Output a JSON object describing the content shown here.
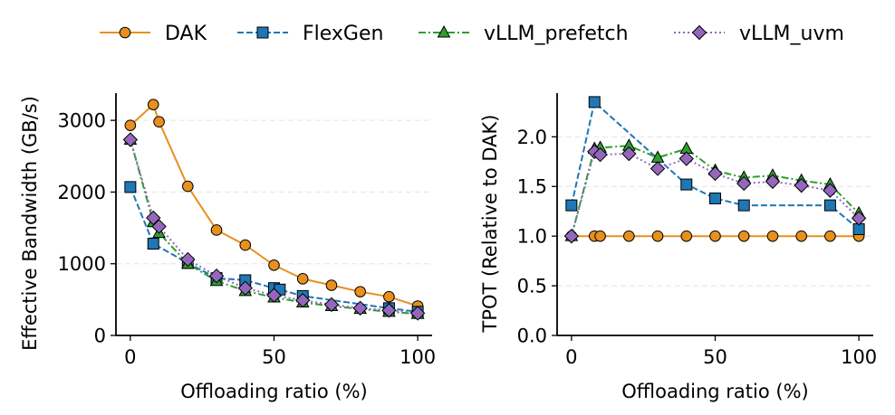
{
  "legend": {
    "position": "top-center",
    "entries": [
      {
        "label": "DAK",
        "color": "#e8901e",
        "marker": "circle",
        "dash": "solid"
      },
      {
        "label": "FlexGen",
        "color": "#1f77b4",
        "marker": "square",
        "dash": "dashed"
      },
      {
        "label": "vLLM_prefetch",
        "color": "#2ca02c",
        "marker": "triangle",
        "dash": "dashdot"
      },
      {
        "label": "vLLM_uvm",
        "color": "#9467bd",
        "marker": "diamond",
        "dash": "dotted"
      }
    ]
  },
  "chart_data": [
    {
      "type": "line",
      "title": "",
      "xlabel": "Offloading ratio (%)",
      "ylabel": "Effective Bandwidth (GB/s)",
      "xlim": [
        -5,
        105
      ],
      "ylim": [
        0,
        3380
      ],
      "xticks": [
        0,
        50,
        100
      ],
      "yticks": [
        0,
        1000,
        2000,
        3000
      ],
      "grid": "horizontal-dashed",
      "series": [
        {
          "name": "DAK",
          "x": [
            0,
            8,
            10,
            20,
            30,
            40,
            50,
            60,
            70,
            80,
            90,
            100
          ],
          "y": [
            2930,
            3220,
            2980,
            2080,
            1470,
            1260,
            980,
            790,
            700,
            610,
            540,
            410
          ]
        },
        {
          "name": "FlexGen",
          "x": [
            0,
            8,
            20,
            30,
            40,
            50,
            52,
            60,
            90,
            100
          ],
          "y": [
            2070,
            1280,
            1010,
            800,
            770,
            660,
            640,
            550,
            380,
            330
          ]
        },
        {
          "name": "vLLM_prefetch",
          "x": [
            0,
            8,
            10,
            20,
            30,
            40,
            50,
            60,
            70,
            80,
            90,
            100
          ],
          "y": [
            2730,
            1580,
            1430,
            1000,
            760,
            620,
            530,
            460,
            410,
            370,
            330,
            300
          ]
        },
        {
          "name": "vLLM_uvm",
          "x": [
            0,
            8,
            10,
            20,
            30,
            40,
            50,
            60,
            70,
            80,
            90,
            100
          ],
          "y": [
            2730,
            1640,
            1520,
            1060,
            830,
            660,
            560,
            490,
            430,
            380,
            350,
            310
          ]
        }
      ]
    },
    {
      "type": "line",
      "title": "",
      "xlabel": "Offloading ratio (%)",
      "ylabel": "TPOT (Relative to DAK)",
      "xlim": [
        -5,
        105
      ],
      "ylim": [
        0,
        2.44
      ],
      "xticks": [
        0,
        50,
        100
      ],
      "yticks": [
        0.0,
        0.5,
        1.0,
        1.5,
        2.0
      ],
      "grid": "horizontal-dashed",
      "series": [
        {
          "name": "DAK",
          "x": [
            0,
            8,
            10,
            20,
            30,
            40,
            50,
            60,
            70,
            80,
            90,
            100
          ],
          "y": [
            1.0,
            1.0,
            1.0,
            1.0,
            1.0,
            1.0,
            1.0,
            1.0,
            1.0,
            1.0,
            1.0,
            1.0
          ]
        },
        {
          "name": "FlexGen",
          "x": [
            0,
            8,
            40,
            50,
            60,
            90,
            100
          ],
          "y": [
            1.31,
            2.35,
            1.52,
            1.38,
            1.31,
            1.31,
            1.07
          ]
        },
        {
          "name": "vLLM_prefetch",
          "x": [
            0,
            8,
            10,
            20,
            30,
            40,
            50,
            60,
            70,
            80,
            90,
            100
          ],
          "y": [
            1.0,
            1.88,
            1.89,
            1.91,
            1.79,
            1.88,
            1.66,
            1.59,
            1.61,
            1.56,
            1.52,
            1.23
          ]
        },
        {
          "name": "vLLM_uvm",
          "x": [
            0,
            8,
            10,
            20,
            30,
            40,
            50,
            60,
            70,
            80,
            90,
            100
          ],
          "y": [
            1.0,
            1.85,
            1.82,
            1.83,
            1.68,
            1.78,
            1.63,
            1.53,
            1.55,
            1.51,
            1.46,
            1.18
          ]
        }
      ]
    }
  ]
}
